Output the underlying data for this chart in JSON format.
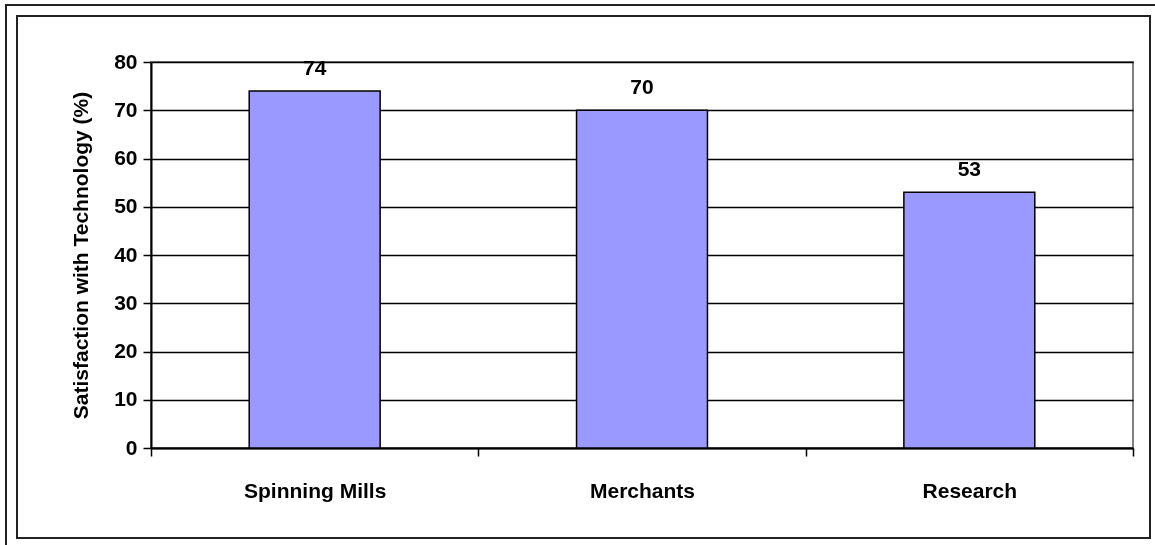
{
  "chart_data": {
    "type": "bar",
    "ylabel": "Satisfaction with Technology (%)",
    "categories": [
      "Spinning Mills",
      "Merchants",
      "Research"
    ],
    "values": [
      74,
      70,
      53
    ],
    "color": "#9999ff",
    "ylim": [
      0,
      80
    ],
    "yticks": [
      0,
      10,
      20,
      30,
      40,
      50,
      60,
      70,
      80
    ],
    "grid": "y",
    "data_labels": true
  }
}
